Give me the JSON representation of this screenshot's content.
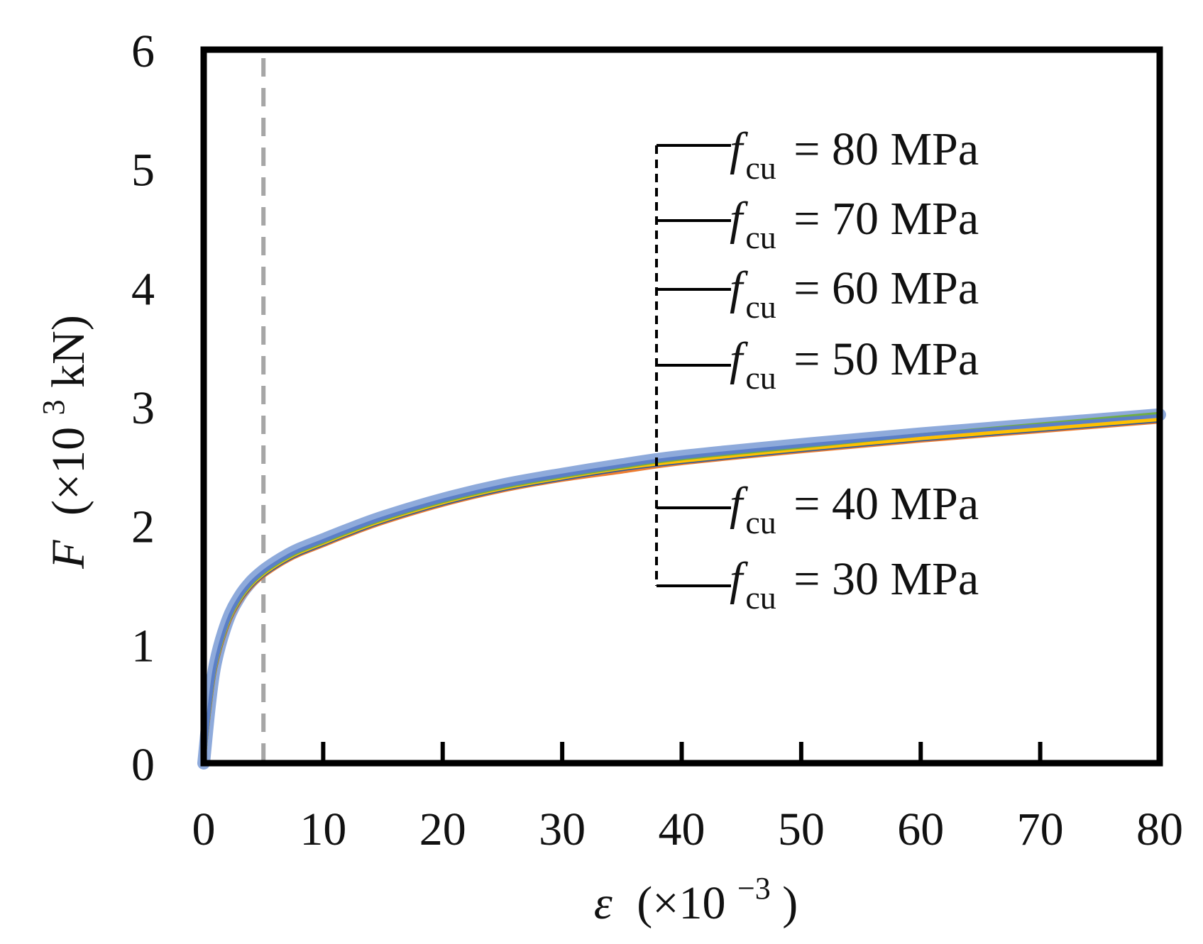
{
  "chart_data": {
    "type": "line",
    "xlabel": {
      "symbol": "ε",
      "prefix": "(×10",
      "exp": "−3",
      "suffix": ")"
    },
    "ylabel": {
      "symbol": "F",
      "prefix": "(×10",
      "exp": "3",
      "suffix": "kN)"
    },
    "xlim": [
      0,
      80
    ],
    "ylim": [
      0,
      6
    ],
    "x_ticks": [
      0,
      10,
      20,
      30,
      40,
      50,
      60,
      70,
      80
    ],
    "y_ticks": [
      0,
      1,
      2,
      3,
      4,
      5,
      6
    ],
    "x_tick_labels": [
      "0",
      "10",
      "20",
      "30",
      "40",
      "50",
      "60",
      "70",
      "80"
    ],
    "y_tick_labels": [
      "0",
      "1",
      "2",
      "3",
      "4",
      "5",
      "6"
    ],
    "grid": false,
    "reference_line": {
      "x": 5,
      "style": "dashed",
      "color": "#a6a6a6"
    },
    "x": [
      0,
      0.5,
      1,
      2,
      3,
      4,
      5,
      6,
      7,
      8,
      10,
      12,
      15,
      20,
      25,
      30,
      35,
      40,
      50,
      60,
      70,
      80
    ],
    "series": [
      {
        "name": "f_cu = 30 MPa",
        "color": "#ed7d31",
        "values": [
          0,
          0.45,
          0.8,
          1.15,
          1.35,
          1.48,
          1.57,
          1.64,
          1.7,
          1.75,
          1.83,
          1.91,
          2.02,
          2.17,
          2.29,
          2.38,
          2.45,
          2.52,
          2.62,
          2.71,
          2.79,
          2.87
        ]
      },
      {
        "name": "f_cu = 40 MPa",
        "color": "#2e5b9f",
        "values": [
          0,
          0.46,
          0.81,
          1.16,
          1.36,
          1.49,
          1.58,
          1.65,
          1.71,
          1.76,
          1.84,
          1.92,
          2.03,
          2.18,
          2.3,
          2.39,
          2.47,
          2.53,
          2.63,
          2.72,
          2.8,
          2.88
        ]
      },
      {
        "name": "f_cu = 50 MPa",
        "color": "#ffc000",
        "values": [
          0,
          0.47,
          0.82,
          1.17,
          1.37,
          1.5,
          1.59,
          1.66,
          1.72,
          1.77,
          1.85,
          1.93,
          2.04,
          2.19,
          2.31,
          2.4,
          2.48,
          2.54,
          2.64,
          2.73,
          2.81,
          2.89
        ]
      },
      {
        "name": "f_cu = 60 MPa",
        "color": "#70ad47",
        "values": [
          0,
          0.48,
          0.83,
          1.18,
          1.38,
          1.51,
          1.6,
          1.67,
          1.73,
          1.78,
          1.86,
          1.94,
          2.05,
          2.2,
          2.32,
          2.41,
          2.49,
          2.56,
          2.66,
          2.76,
          2.85,
          2.94
        ]
      },
      {
        "name": "f_cu = 70 MPa",
        "color": "#5b7fc7",
        "values": [
          0,
          0.49,
          0.84,
          1.19,
          1.39,
          1.52,
          1.61,
          1.68,
          1.74,
          1.79,
          1.87,
          1.95,
          2.06,
          2.21,
          2.33,
          2.42,
          2.5,
          2.57,
          2.67,
          2.76,
          2.84,
          2.92
        ]
      },
      {
        "name": "f_cu = 80 MPa",
        "color": "#8eaadb",
        "values": [
          0,
          0.5,
          0.85,
          1.2,
          1.4,
          1.53,
          1.62,
          1.69,
          1.75,
          1.8,
          1.88,
          1.96,
          2.07,
          2.22,
          2.34,
          2.43,
          2.51,
          2.58,
          2.68,
          2.77,
          2.85,
          2.93
        ]
      }
    ],
    "legend": {
      "placement": "right-center",
      "entries": [
        {
          "main": "f",
          "sub": "cu",
          "rest": " = 80 MPa"
        },
        {
          "main": "f",
          "sub": "cu",
          "rest": " = 70 MPa"
        },
        {
          "main": "f",
          "sub": "cu",
          "rest": " = 60 MPa"
        },
        {
          "main": "f",
          "sub": "cu",
          "rest": " = 50 MPa"
        },
        {
          "main": "f",
          "sub": "cu",
          "rest": " = 40 MPa"
        },
        {
          "main": "f",
          "sub": "cu",
          "rest": " = 30 MPa"
        }
      ]
    }
  }
}
